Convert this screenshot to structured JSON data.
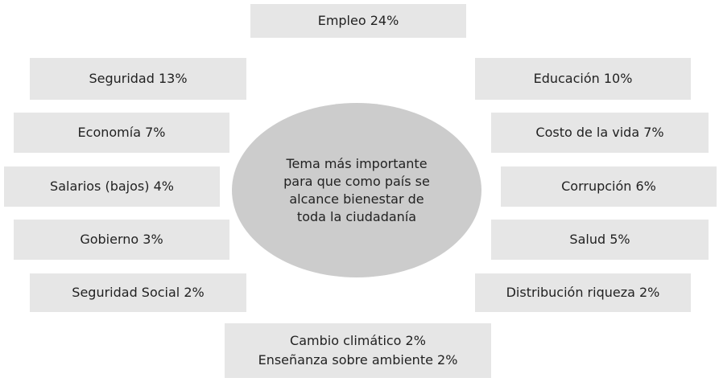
{
  "center": {
    "lines": [
      "Tema más importante",
      "para que como país se",
      "alcance bienestar de",
      "toda la ciudadanía"
    ]
  },
  "nodes": [
    {
      "lines": [
        "Empleo 24%"
      ]
    },
    {
      "lines": [
        "Seguridad 13%"
      ]
    },
    {
      "lines": [
        "Educación 10%"
      ]
    },
    {
      "lines": [
        "Economía 7%"
      ]
    },
    {
      "lines": [
        "Costo de la vida 7%"
      ]
    },
    {
      "lines": [
        "Salarios (bajos) 4%"
      ]
    },
    {
      "lines": [
        "Corrupción 6%"
      ]
    },
    {
      "lines": [
        "Gobierno 3%"
      ]
    },
    {
      "lines": [
        "Salud 5%"
      ]
    },
    {
      "lines": [
        "Seguridad Social 2%"
      ]
    },
    {
      "lines": [
        "Distribución riqueza 2%"
      ]
    },
    {
      "lines": [
        "Cambio climático 2%",
        "Enseñanza sobre ambiente 2%"
      ]
    }
  ]
}
